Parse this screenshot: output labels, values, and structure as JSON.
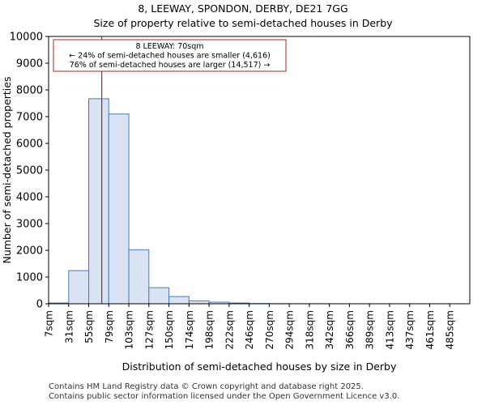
{
  "title_line1": "8, LEEWAY, SPONDON, DERBY, DE21 7GG",
  "title_line2": "Size of property relative to semi-detached houses in Derby",
  "footer_line1": "Contains HM Land Registry data © Crown copyright and database right 2025.",
  "footer_line2": "Contains public sector information licensed under the Open Government Licence v3.0.",
  "colors": {
    "bar_fill": "#dae3f3",
    "bar_edge": "#4a7ab8",
    "marker": "#b22222",
    "box_edge": "#b22222"
  },
  "chart_data": {
    "type": "bar",
    "title": "Size of property relative to semi-detached houses in Derby",
    "xlabel": "Distribution of semi-detached houses by size in Derby",
    "ylabel": "Number of semi-detached properties",
    "ylim": [
      0,
      10000
    ],
    "yticks": [
      0,
      1000,
      2000,
      3000,
      4000,
      5000,
      6000,
      7000,
      8000,
      9000,
      10000
    ],
    "categories": [
      "7sqm",
      "31sqm",
      "55sqm",
      "79sqm",
      "103sqm",
      "127sqm",
      "150sqm",
      "174sqm",
      "198sqm",
      "222sqm",
      "246sqm",
      "270sqm",
      "294sqm",
      "318sqm",
      "342sqm",
      "366sqm",
      "389sqm",
      "413sqm",
      "437sqm",
      "461sqm",
      "485sqm"
    ],
    "values": [
      30,
      1240,
      7670,
      7100,
      2020,
      600,
      270,
      110,
      60,
      30,
      10,
      5,
      3,
      2,
      1,
      1,
      0,
      0,
      0,
      0,
      0
    ],
    "marker": {
      "bin_position": 2.65,
      "label": "70sqm"
    },
    "annotation": {
      "line1": "8 LEEWAY: 70sqm",
      "line2": "← 24% of semi-detached houses are smaller (4,616)",
      "line3": "76% of semi-detached houses are larger (14,517) →"
    }
  }
}
